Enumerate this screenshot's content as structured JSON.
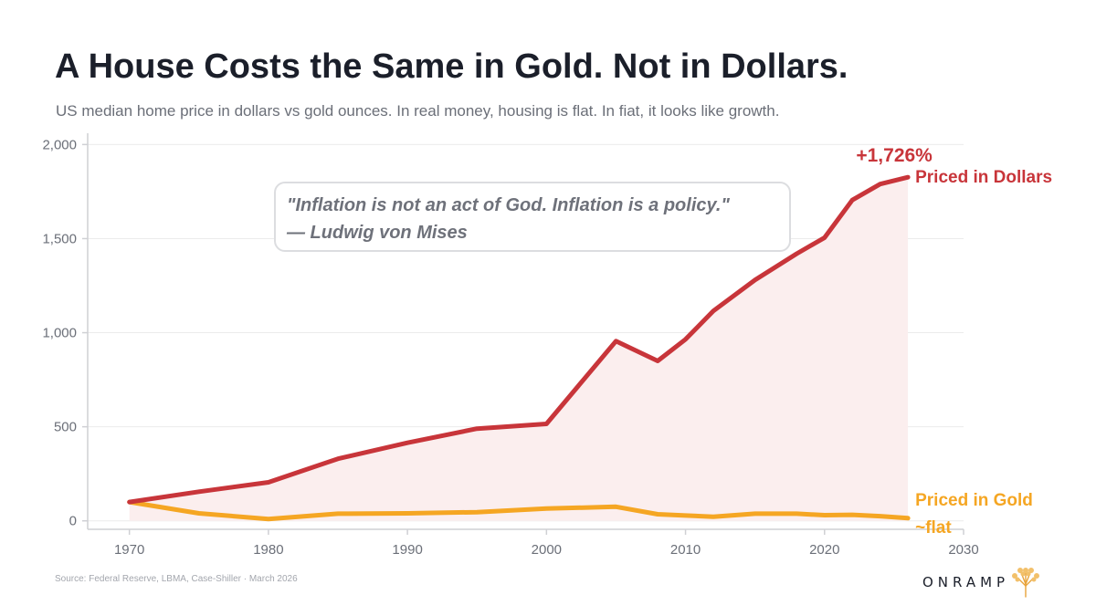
{
  "header": {
    "title": "A House Costs the Same in Gold. Not in Dollars.",
    "subtitle": "US median home price in dollars vs gold ounces. In real money, housing is flat. In fiat, it looks like growth."
  },
  "quote": {
    "line1": "\"Inflation is not an act of God. Inflation is a policy.\"",
    "line2": "— Ludwig von Mises"
  },
  "footer": {
    "source": "Source: Federal Reserve, LBMA, Case-Shiller · March 2026",
    "brand": "ONRAMP"
  },
  "colors": {
    "dollars": "#c8353a",
    "gold": "#f5a623",
    "fill": "#fbeeee",
    "grid": "#ececec",
    "axis": "#cfd0d4"
  },
  "chart_data": {
    "type": "line",
    "xlim": [
      1967,
      2030
    ],
    "ylim": [
      -45,
      2060
    ],
    "x_ticks": [
      1970,
      1980,
      1990,
      2000,
      2010,
      2020,
      2030
    ],
    "y_ticks": [
      0,
      500,
      1000,
      1500,
      2000
    ],
    "y_tick_labels": [
      "0",
      "500",
      "1,000",
      "1,500",
      "2,000"
    ],
    "grid": true,
    "series": [
      {
        "name": "Priced in Dollars",
        "color": "#c8353a",
        "filled": true,
        "x": [
          1970,
          1975,
          1980,
          1985,
          1990,
          1995,
          2000,
          2005,
          2008,
          2010,
          2012,
          2015,
          2018,
          2020,
          2022,
          2024,
          2026
        ],
        "y": [
          100,
          155,
          205,
          330,
          415,
          490,
          515,
          955,
          850,
          965,
          1115,
          1280,
          1420,
          1505,
          1705,
          1790,
          1826
        ]
      },
      {
        "name": "Priced in Gold",
        "color": "#f5a623",
        "filled": false,
        "x": [
          1970,
          1975,
          1980,
          1985,
          1990,
          1995,
          2000,
          2005,
          2008,
          2010,
          2012,
          2015,
          2018,
          2020,
          2022,
          2024,
          2026
        ],
        "y": [
          100,
          40,
          10,
          38,
          40,
          46,
          65,
          75,
          35,
          28,
          22,
          38,
          38,
          30,
          32,
          25,
          14
        ]
      }
    ],
    "annotations": {
      "dollars_change": "+1,726%",
      "dollars_label": "Priced in Dollars",
      "gold_label": "Priced in Gold",
      "gold_note": "~flat"
    }
  }
}
